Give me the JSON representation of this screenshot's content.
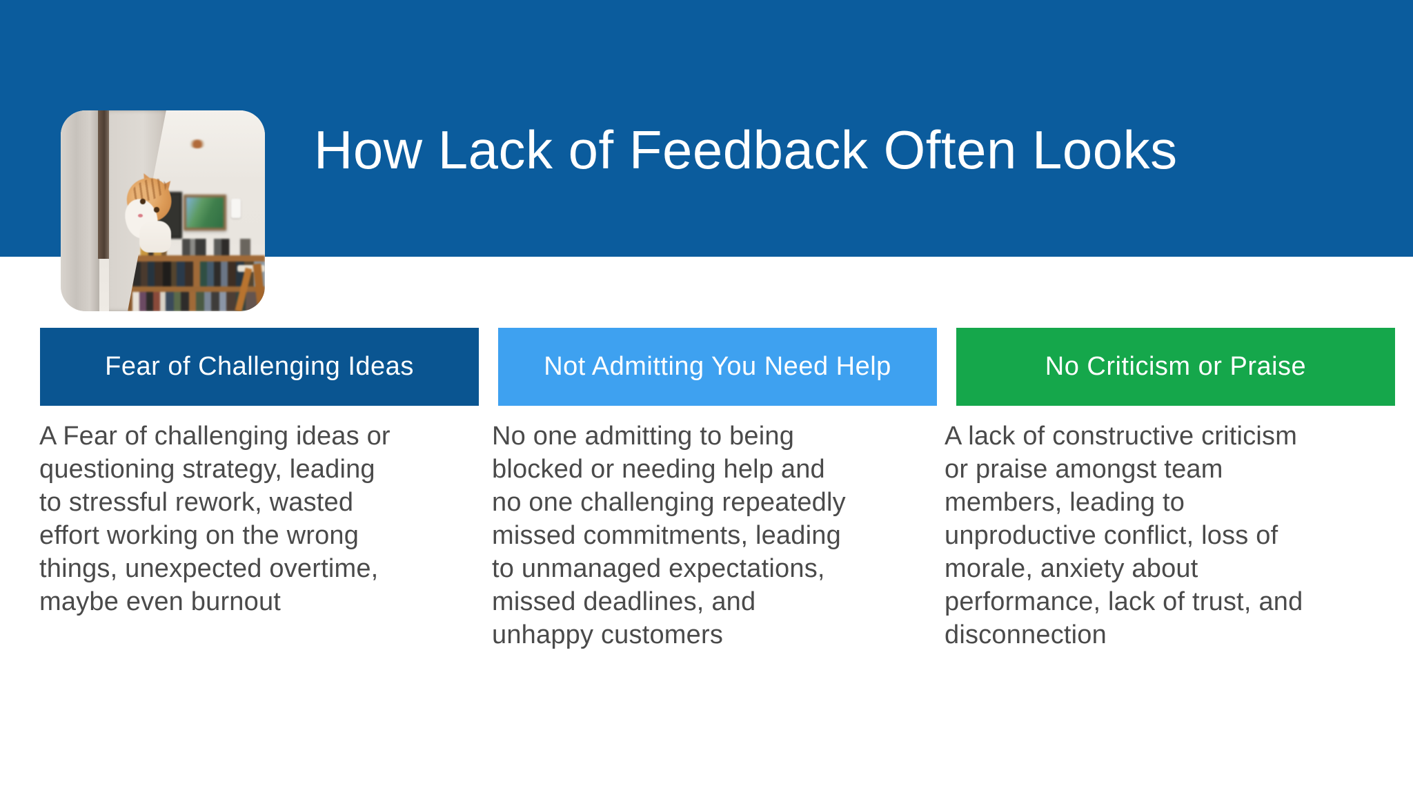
{
  "slide": {
    "title": "How Lack of Feedback Often Looks",
    "photo_description": "cat-peeking-around-door-photo",
    "colors": {
      "banner_blue": "#0B5C9D",
      "header_dark_blue": "#0A5591",
      "header_light_blue": "#3EA1F0",
      "header_green": "#15A74B",
      "title_text": "#FFFFFF",
      "body_text": "#4A4A4A",
      "background": "#FFFFFF"
    },
    "columns": [
      {
        "header": "Fear of Challenging Ideas",
        "body_lines": [
          "A Fear of challenging ideas or",
          "questioning strategy, leading",
          "to stressful rework, wasted",
          "effort working on the wrong",
          "things, unexpected overtime,",
          "maybe even burnout"
        ]
      },
      {
        "header": "Not Admitting You Need Help",
        "body_lines": [
          "No one admitting to being",
          "blocked or needing help and",
          "no one challenging repeatedly",
          "missed commitments, leading",
          "to unmanaged expectations,",
          "missed deadlines, and",
          "unhappy customers"
        ]
      },
      {
        "header": "No Criticism or Praise",
        "body_lines": [
          "A lack of constructive criticism",
          "or praise amongst team",
          "members, leading to",
          "unproductive conflict, loss of",
          "morale, anxiety about",
          "performance, lack of trust, and",
          "disconnection"
        ]
      }
    ]
  }
}
